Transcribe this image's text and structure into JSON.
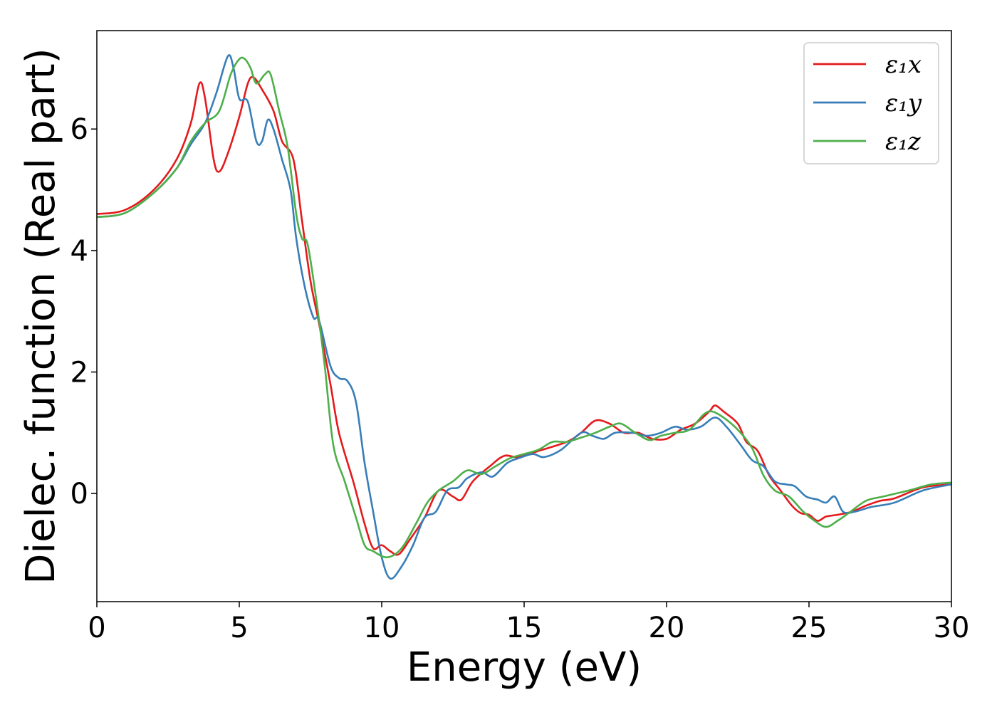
{
  "chart_data": {
    "type": "line",
    "xlabel": "Energy (eV)",
    "ylabel": "Dielec. function (Real part)",
    "xlim": [
      0,
      30
    ],
    "ylim": [
      -1.78,
      7.62
    ],
    "xticks": [
      0,
      5,
      10,
      15,
      20,
      25,
      30
    ],
    "yticks": [
      0,
      2,
      4,
      6
    ],
    "grid": false,
    "legend_position": "top-right",
    "series": [
      {
        "name": "ε₁x",
        "color": "#e41a1c",
        "points": [
          [
            0,
            4.6
          ],
          [
            1,
            4.67
          ],
          [
            2,
            5.0
          ],
          [
            2.8,
            5.5
          ],
          [
            3.3,
            6.1
          ],
          [
            3.6,
            6.75
          ],
          [
            3.8,
            6.5
          ],
          [
            4.1,
            5.5
          ],
          [
            4.3,
            5.3
          ],
          [
            4.6,
            5.6
          ],
          [
            5.0,
            6.2
          ],
          [
            5.3,
            6.75
          ],
          [
            5.5,
            6.85
          ],
          [
            5.8,
            6.65
          ],
          [
            6.2,
            6.3
          ],
          [
            6.5,
            5.8
          ],
          [
            6.9,
            5.5
          ],
          [
            7.2,
            4.5
          ],
          [
            7.5,
            3.5
          ],
          [
            7.8,
            2.8
          ],
          [
            8.2,
            1.8
          ],
          [
            8.5,
            1.0
          ],
          [
            9.0,
            0.2
          ],
          [
            9.4,
            -0.5
          ],
          [
            9.7,
            -0.9
          ],
          [
            10.0,
            -0.85
          ],
          [
            10.3,
            -0.95
          ],
          [
            10.6,
            -1.0
          ],
          [
            11.0,
            -0.75
          ],
          [
            11.5,
            -0.4
          ],
          [
            12.0,
            0.05
          ],
          [
            12.5,
            -0.05
          ],
          [
            12.8,
            -0.1
          ],
          [
            13.2,
            0.2
          ],
          [
            13.8,
            0.45
          ],
          [
            14.3,
            0.62
          ],
          [
            14.8,
            0.6
          ],
          [
            15.5,
            0.7
          ],
          [
            16.5,
            0.85
          ],
          [
            17.0,
            1.0
          ],
          [
            17.5,
            1.2
          ],
          [
            18.0,
            1.15
          ],
          [
            18.5,
            1.0
          ],
          [
            19.0,
            1.0
          ],
          [
            19.5,
            0.9
          ],
          [
            20.0,
            0.9
          ],
          [
            20.5,
            1.05
          ],
          [
            21.0,
            1.15
          ],
          [
            21.5,
            1.35
          ],
          [
            21.7,
            1.45
          ],
          [
            22.0,
            1.35
          ],
          [
            22.5,
            1.15
          ],
          [
            22.8,
            0.85
          ],
          [
            23.2,
            0.7
          ],
          [
            23.6,
            0.3
          ],
          [
            24.0,
            0.05
          ],
          [
            24.4,
            -0.2
          ],
          [
            24.7,
            -0.32
          ],
          [
            25.0,
            -0.35
          ],
          [
            25.3,
            -0.45
          ],
          [
            25.6,
            -0.38
          ],
          [
            26.0,
            -0.35
          ],
          [
            26.5,
            -0.3
          ],
          [
            27.0,
            -0.2
          ],
          [
            27.5,
            -0.12
          ],
          [
            28.0,
            -0.08
          ],
          [
            29.0,
            0.1
          ],
          [
            30.0,
            0.15
          ]
        ]
      },
      {
        "name": "ε₁y",
        "color": "#377eb8",
        "points": [
          [
            0,
            4.55
          ],
          [
            1,
            4.62
          ],
          [
            2,
            4.95
          ],
          [
            2.8,
            5.35
          ],
          [
            3.3,
            5.75
          ],
          [
            3.8,
            6.1
          ],
          [
            4.2,
            6.6
          ],
          [
            4.6,
            7.2
          ],
          [
            4.8,
            7.0
          ],
          [
            5.0,
            6.5
          ],
          [
            5.3,
            6.45
          ],
          [
            5.6,
            5.8
          ],
          [
            5.8,
            5.8
          ],
          [
            6.0,
            6.15
          ],
          [
            6.2,
            6.0
          ],
          [
            6.5,
            5.5
          ],
          [
            6.8,
            5.0
          ],
          [
            7.0,
            4.2
          ],
          [
            7.3,
            3.4
          ],
          [
            7.6,
            2.9
          ],
          [
            7.8,
            2.85
          ],
          [
            8.2,
            2.1
          ],
          [
            8.5,
            1.9
          ],
          [
            8.8,
            1.85
          ],
          [
            9.1,
            1.5
          ],
          [
            9.4,
            0.5
          ],
          [
            9.7,
            -0.3
          ],
          [
            10.0,
            -1.05
          ],
          [
            10.3,
            -1.4
          ],
          [
            10.7,
            -1.2
          ],
          [
            11.1,
            -0.85
          ],
          [
            11.5,
            -0.4
          ],
          [
            11.9,
            -0.3
          ],
          [
            12.3,
            0.05
          ],
          [
            12.7,
            0.1
          ],
          [
            13.0,
            0.25
          ],
          [
            13.5,
            0.35
          ],
          [
            13.9,
            0.28
          ],
          [
            14.4,
            0.5
          ],
          [
            14.8,
            0.58
          ],
          [
            15.3,
            0.65
          ],
          [
            15.7,
            0.6
          ],
          [
            16.3,
            0.72
          ],
          [
            17.0,
            1.0
          ],
          [
            17.4,
            0.95
          ],
          [
            17.8,
            0.9
          ],
          [
            18.2,
            1.0
          ],
          [
            18.8,
            1.0
          ],
          [
            19.3,
            0.95
          ],
          [
            19.8,
            1.0
          ],
          [
            20.3,
            1.1
          ],
          [
            20.7,
            1.05
          ],
          [
            21.2,
            1.1
          ],
          [
            21.7,
            1.25
          ],
          [
            22.1,
            1.1
          ],
          [
            22.6,
            0.8
          ],
          [
            23.0,
            0.55
          ],
          [
            23.4,
            0.45
          ],
          [
            23.8,
            0.2
          ],
          [
            24.2,
            0.15
          ],
          [
            24.5,
            0.12
          ],
          [
            24.9,
            -0.05
          ],
          [
            25.3,
            -0.1
          ],
          [
            25.6,
            -0.15
          ],
          [
            25.9,
            -0.05
          ],
          [
            26.2,
            -0.3
          ],
          [
            26.6,
            -0.3
          ],
          [
            27.2,
            -0.22
          ],
          [
            28.0,
            -0.15
          ],
          [
            29.0,
            0.05
          ],
          [
            30.0,
            0.15
          ]
        ]
      },
      {
        "name": "ε₁z",
        "color": "#4daf4a",
        "points": [
          [
            0,
            4.55
          ],
          [
            1,
            4.62
          ],
          [
            2,
            4.95
          ],
          [
            2.8,
            5.35
          ],
          [
            3.3,
            5.8
          ],
          [
            3.8,
            6.1
          ],
          [
            4.3,
            6.3
          ],
          [
            4.7,
            6.9
          ],
          [
            5.0,
            7.15
          ],
          [
            5.2,
            7.15
          ],
          [
            5.4,
            7.0
          ],
          [
            5.6,
            6.75
          ],
          [
            5.9,
            6.9
          ],
          [
            6.1,
            6.9
          ],
          [
            6.4,
            6.3
          ],
          [
            6.7,
            5.7
          ],
          [
            7.0,
            4.6
          ],
          [
            7.2,
            4.2
          ],
          [
            7.4,
            4.1
          ],
          [
            7.7,
            3.2
          ],
          [
            8.0,
            2.1
          ],
          [
            8.3,
            0.8
          ],
          [
            8.7,
            0.2
          ],
          [
            9.1,
            -0.4
          ],
          [
            9.4,
            -0.85
          ],
          [
            9.7,
            -0.95
          ],
          [
            10.2,
            -1.05
          ],
          [
            10.7,
            -0.9
          ],
          [
            11.2,
            -0.5
          ],
          [
            11.6,
            -0.15
          ],
          [
            12.0,
            0.05
          ],
          [
            12.5,
            0.2
          ],
          [
            13.0,
            0.38
          ],
          [
            13.5,
            0.32
          ],
          [
            14.0,
            0.45
          ],
          [
            14.5,
            0.58
          ],
          [
            15.0,
            0.65
          ],
          [
            15.5,
            0.72
          ],
          [
            16.0,
            0.85
          ],
          [
            16.5,
            0.85
          ],
          [
            17.0,
            0.92
          ],
          [
            17.5,
            1.0
          ],
          [
            18.0,
            1.1
          ],
          [
            18.4,
            1.15
          ],
          [
            18.9,
            1.0
          ],
          [
            19.4,
            0.88
          ],
          [
            19.8,
            0.95
          ],
          [
            20.3,
            1.0
          ],
          [
            20.8,
            1.05
          ],
          [
            21.3,
            1.3
          ],
          [
            21.6,
            1.35
          ],
          [
            22.0,
            1.25
          ],
          [
            22.5,
            1.05
          ],
          [
            23.0,
            0.75
          ],
          [
            23.4,
            0.3
          ],
          [
            23.8,
            0.05
          ],
          [
            24.3,
            -0.05
          ],
          [
            24.8,
            -0.3
          ],
          [
            25.2,
            -0.45
          ],
          [
            25.6,
            -0.55
          ],
          [
            26.0,
            -0.45
          ],
          [
            26.4,
            -0.32
          ],
          [
            27.0,
            -0.12
          ],
          [
            27.6,
            -0.05
          ],
          [
            28.5,
            0.05
          ],
          [
            29.3,
            0.15
          ],
          [
            30.0,
            0.18
          ]
        ]
      }
    ]
  }
}
